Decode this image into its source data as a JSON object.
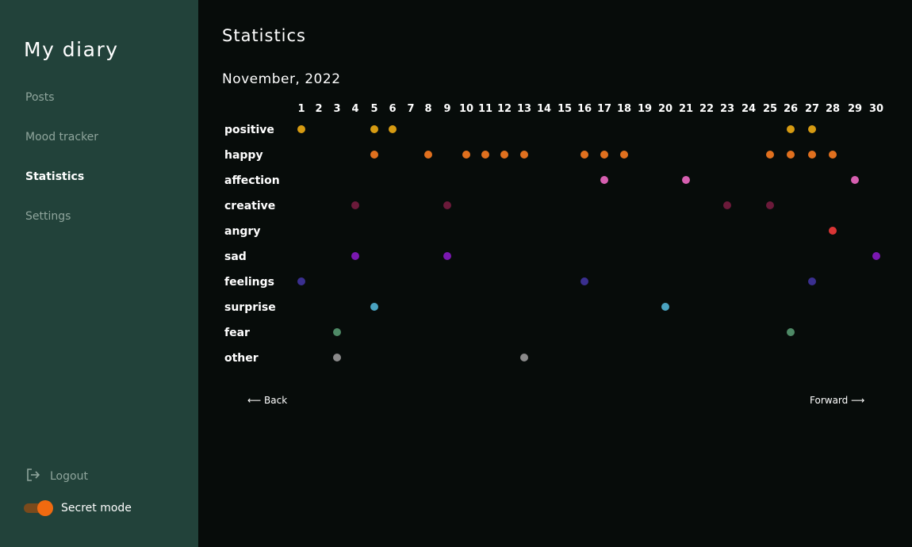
{
  "sidebar": {
    "brand": "My diary",
    "items": [
      {
        "label": "Posts",
        "active": false
      },
      {
        "label": "Mood tracker",
        "active": false
      },
      {
        "label": "Statistics",
        "active": true
      },
      {
        "label": "Settings",
        "active": false
      }
    ],
    "logout_label": "Logout",
    "logout_icon": "logout-icon",
    "secret_mode_label": "Secret mode",
    "secret_mode_on": true
  },
  "main": {
    "title": "Statistics",
    "month": "November, 2022",
    "back_label": "⟵ Back",
    "forward_label": "Forward ⟶"
  },
  "chart_data": {
    "type": "scatter",
    "days": [
      1,
      2,
      3,
      4,
      5,
      6,
      7,
      8,
      9,
      10,
      11,
      12,
      13,
      14,
      15,
      16,
      17,
      18,
      19,
      20,
      21,
      22,
      23,
      24,
      25,
      26,
      27,
      28,
      29,
      30
    ],
    "series": [
      {
        "name": "positive",
        "color": "#d69b12",
        "days": [
          1,
          5,
          6,
          26,
          27
        ]
      },
      {
        "name": "happy",
        "color": "#e0701e",
        "days": [
          5,
          8,
          10,
          11,
          12,
          13,
          16,
          17,
          18,
          25,
          26,
          27,
          28
        ]
      },
      {
        "name": "affection",
        "color": "#d65fb0",
        "days": [
          17,
          21,
          29
        ]
      },
      {
        "name": "creative",
        "color": "#6b1a3a",
        "days": [
          4,
          9,
          23,
          25
        ]
      },
      {
        "name": "angry",
        "color": "#d93535",
        "days": [
          28
        ]
      },
      {
        "name": "sad",
        "color": "#7a18b0",
        "days": [
          4,
          9,
          30
        ]
      },
      {
        "name": "feelings",
        "color": "#3a2f8f",
        "days": [
          1,
          16,
          27
        ]
      },
      {
        "name": "surprise",
        "color": "#4aa3c0",
        "days": [
          5,
          20
        ]
      },
      {
        "name": "fear",
        "color": "#4e8a66",
        "days": [
          3,
          26
        ]
      },
      {
        "name": "other",
        "color": "#8a8a8a",
        "days": [
          3,
          13
        ]
      }
    ]
  }
}
